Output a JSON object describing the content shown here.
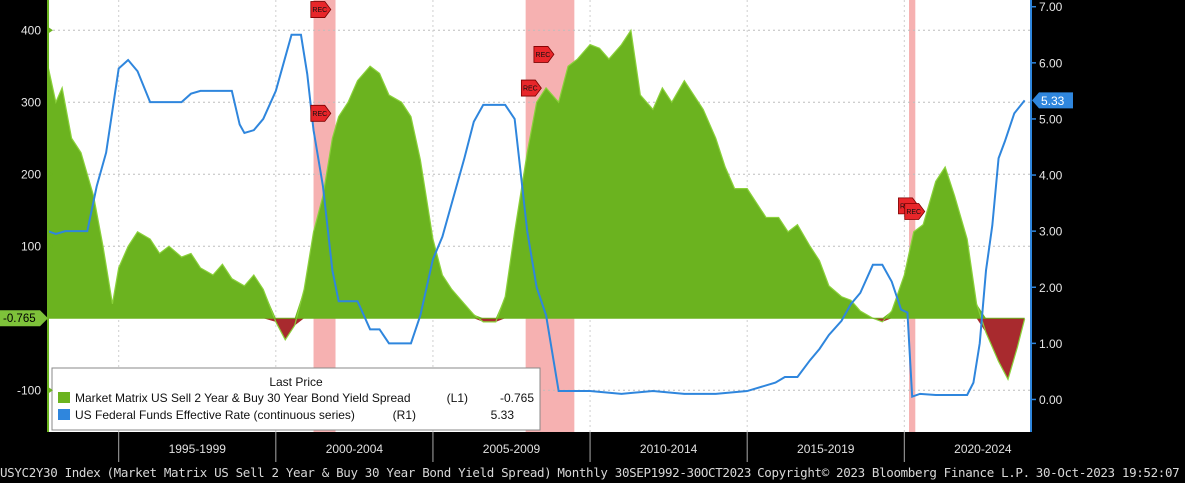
{
  "chart_data": {
    "type": "area",
    "left_axis": {
      "ticks": [
        -100,
        100,
        200,
        300,
        400
      ],
      "range": [
        -158,
        442
      ]
    },
    "right_axis": {
      "ticks": [
        0,
        1,
        2,
        3,
        4,
        5,
        6,
        7
      ],
      "tick_labels": [
        "0.00",
        "1.00",
        "2.00",
        "3.00",
        "4.00",
        "5.00",
        "6.00",
        "7.00"
      ],
      "range": [
        -0.58,
        7.12
      ]
    },
    "x_axis": {
      "range": [
        1992.75,
        2024.0
      ],
      "labels": [
        "1995-1999",
        "2000-2004",
        "2005-2009",
        "2010-2014",
        "2015-2019",
        "2020-2024"
      ],
      "label_centers": [
        1997.5,
        2002.5,
        2007.5,
        2012.5,
        2017.5,
        2022.5
      ],
      "separators": [
        1995,
        2000,
        2005,
        2010,
        2015,
        2020
      ]
    },
    "recessions": [
      [
        2001.2,
        2001.9
      ],
      [
        2007.95,
        2009.5
      ],
      [
        2020.15,
        2020.35
      ]
    ],
    "recession_labels": [
      {
        "label": "REC",
        "x": 2001.4,
        "y": 6.95
      },
      {
        "label": "REC",
        "x": 2001.4,
        "y": 5.1
      },
      {
        "label": "REC",
        "x": 2008.1,
        "y": 5.55
      },
      {
        "label": "REC",
        "x": 2008.5,
        "y": 6.15
      },
      {
        "label": "REC",
        "x": 2020.1,
        "y": 3.45
      },
      {
        "label": "REC",
        "x": 2020.3,
        "y": 3.35
      }
    ],
    "series": [
      {
        "name": "Market Matrix US Sell 2 Year & Buy 30 Year Bond Yield Spread",
        "axis": "L1",
        "last_price": "-0.765",
        "color": "#6bb31f",
        "x": [
          1992.75,
          1993.0,
          1993.2,
          1993.5,
          1993.8,
          1994.0,
          1994.2,
          1994.5,
          1994.8,
          1995.0,
          1995.3,
          1995.6,
          1996.0,
          1996.3,
          1996.6,
          1997.0,
          1997.3,
          1997.6,
          1998.0,
          1998.3,
          1998.6,
          1999.0,
          1999.3,
          1999.6,
          2000.0,
          2000.3,
          2000.6,
          2000.9,
          2001.2,
          2001.5,
          2001.8,
          2002.0,
          2002.3,
          2002.6,
          2003.0,
          2003.3,
          2003.6,
          2004.0,
          2004.3,
          2004.6,
          2005.0,
          2005.3,
          2005.6,
          2006.0,
          2006.3,
          2006.6,
          2007.0,
          2007.3,
          2007.6,
          2008.0,
          2008.3,
          2008.6,
          2009.0,
          2009.3,
          2009.6,
          2010.0,
          2010.3,
          2010.6,
          2011.0,
          2011.3,
          2011.6,
          2012.0,
          2012.3,
          2012.6,
          2013.0,
          2013.3,
          2013.6,
          2014.0,
          2014.3,
          2014.6,
          2015.0,
          2015.3,
          2015.6,
          2016.0,
          2016.3,
          2016.6,
          2017.0,
          2017.3,
          2017.6,
          2018.0,
          2018.3,
          2018.6,
          2019.0,
          2019.3,
          2019.6,
          2020.0,
          2020.3,
          2020.6,
          2021.0,
          2021.3,
          2021.6,
          2022.0,
          2022.3,
          2022.6,
          2023.0,
          2023.3,
          2023.6,
          2023.83
        ],
        "values": [
          350,
          300,
          320,
          250,
          230,
          200,
          170,
          100,
          20,
          70,
          100,
          120,
          110,
          90,
          100,
          85,
          90,
          70,
          60,
          75,
          55,
          45,
          60,
          40,
          -5,
          -30,
          -10,
          40,
          120,
          170,
          250,
          280,
          300,
          330,
          350,
          340,
          310,
          300,
          280,
          220,
          110,
          60,
          40,
          20,
          5,
          -5,
          -5,
          30,
          120,
          230,
          300,
          320,
          300,
          350,
          360,
          380,
          375,
          360,
          380,
          400,
          310,
          290,
          320,
          300,
          330,
          310,
          290,
          250,
          210,
          180,
          180,
          160,
          140,
          140,
          120,
          130,
          100,
          80,
          45,
          30,
          25,
          10,
          0,
          -5,
          10,
          60,
          120,
          130,
          190,
          210,
          170,
          110,
          20,
          -20,
          -60,
          -85,
          -40,
          -0.765
        ]
      },
      {
        "name": "US Federal Funds Effective Rate (continuous series)",
        "axis": "R1",
        "last_price": "5.33",
        "color": "#2f86dd",
        "x": [
          1992.75,
          1993.0,
          1993.3,
          1993.6,
          1994.0,
          1994.3,
          1994.6,
          1995.0,
          1995.3,
          1995.6,
          1996.0,
          1996.3,
          1996.6,
          1997.0,
          1997.3,
          1997.6,
          1998.0,
          1998.3,
          1998.6,
          1998.85,
          1999.0,
          1999.3,
          1999.6,
          2000.0,
          2000.2,
          2000.5,
          2000.8,
          2001.0,
          2001.2,
          2001.5,
          2001.8,
          2002.0,
          2002.3,
          2002.6,
          2003.0,
          2003.3,
          2003.6,
          2004.0,
          2004.3,
          2004.6,
          2005.0,
          2005.3,
          2005.6,
          2006.0,
          2006.3,
          2006.6,
          2007.0,
          2007.3,
          2007.6,
          2008.0,
          2008.3,
          2008.6,
          2009.0,
          2009.5,
          2010.0,
          2011.0,
          2012.0,
          2013.0,
          2014.0,
          2015.0,
          2015.9,
          2016.2,
          2016.6,
          2017.0,
          2017.3,
          2017.6,
          2018.0,
          2018.3,
          2018.6,
          2019.0,
          2019.3,
          2019.6,
          2019.9,
          2020.1,
          2020.25,
          2020.5,
          2021.0,
          2021.5,
          2022.0,
          2022.2,
          2022.4,
          2022.6,
          2022.8,
          2023.0,
          2023.2,
          2023.5,
          2023.83
        ],
        "values": [
          3.0,
          2.95,
          3.0,
          3.0,
          3.0,
          3.8,
          4.4,
          5.9,
          6.05,
          5.85,
          5.3,
          5.3,
          5.3,
          5.3,
          5.45,
          5.5,
          5.5,
          5.5,
          5.5,
          4.9,
          4.75,
          4.8,
          5.0,
          5.5,
          5.9,
          6.5,
          6.5,
          5.8,
          4.8,
          3.8,
          2.3,
          1.75,
          1.75,
          1.75,
          1.25,
          1.25,
          1.0,
          1.0,
          1.0,
          1.5,
          2.5,
          2.9,
          3.5,
          4.3,
          4.95,
          5.25,
          5.25,
          5.25,
          5.0,
          3.0,
          2.0,
          1.5,
          0.15,
          0.15,
          0.15,
          0.1,
          0.15,
          0.1,
          0.1,
          0.15,
          0.3,
          0.4,
          0.4,
          0.7,
          0.9,
          1.15,
          1.4,
          1.7,
          1.9,
          2.4,
          2.4,
          2.1,
          1.6,
          1.55,
          0.05,
          0.1,
          0.08,
          0.08,
          0.08,
          0.3,
          1.0,
          2.3,
          3.1,
          4.3,
          4.6,
          5.1,
          5.33
        ]
      }
    ]
  },
  "y_axis_left_labels": [
    "-100",
    "100",
    "200",
    "300",
    "400"
  ],
  "left_last_value": "-0.765",
  "right_last_value": "5.33",
  "legend": {
    "title": "Last Price",
    "rows": [
      {
        "label": "Market Matrix US Sell 2 Year & Buy 30 Year Bond Yield Spread",
        "axis": "(L1)",
        "value": "-0.765"
      },
      {
        "label": "US Federal Funds Effective Rate (continuous series)",
        "axis": "(R1)",
        "value": "5.33"
      }
    ]
  },
  "footer": {
    "ticker": "USYC2Y30 Index",
    "description": "(Market Matrix US Sell 2 Year & Buy 30 Year Bond Yield Spread)",
    "frequency": "Monthly 30SEP1992-30OCT2023",
    "copyright": "Copyright© 2023 Bloomberg Finance L.P.",
    "timestamp": "30-Oct-2023 19:52:07"
  },
  "colors": {
    "spread_pos": "#6bb31f",
    "spread_neg": "#a82a2e",
    "fedfunds": "#2f86dd",
    "recession": "#f4a3a3",
    "rec_tag": "#e8262a",
    "right_tag": "#2f86dd",
    "left_tag": "#7ec23a"
  }
}
